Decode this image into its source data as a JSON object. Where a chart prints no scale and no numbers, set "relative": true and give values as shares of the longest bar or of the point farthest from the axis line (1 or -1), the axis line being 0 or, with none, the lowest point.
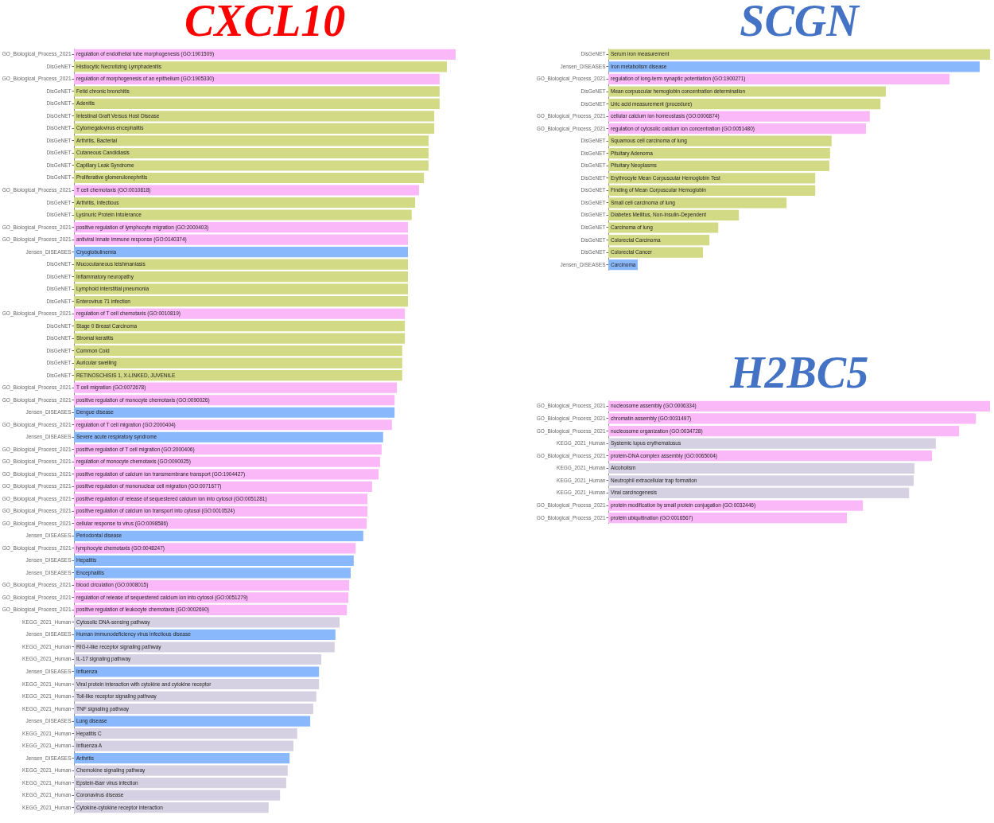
{
  "chart_data": [
    {
      "type": "bar",
      "orientation": "horizontal",
      "relative": true,
      "title": "CXCL10",
      "categories": [
        "GO_Biological_Process_2021",
        "DisGeNET",
        "GO_Biological_Process_2021",
        "DisGeNET",
        "DisGeNET",
        "DisGeNET",
        "DisGeNET",
        "DisGeNET",
        "DisGeNET",
        "DisGeNET",
        "DisGeNET",
        "GO_Biological_Process_2021",
        "DisGeNET",
        "DisGeNET",
        "GO_Biological_Process_2021",
        "GO_Biological_Process_2021",
        "Jensen_DISEASES",
        "DisGeNET",
        "DisGeNET",
        "DisGeNET",
        "DisGeNET",
        "GO_Biological_Process_2021",
        "DisGeNET",
        "DisGeNET",
        "DisGeNET",
        "DisGeNET",
        "DisGeNET",
        "GO_Biological_Process_2021",
        "GO_Biological_Process_2021",
        "Jensen_DISEASES",
        "GO_Biological_Process_2021",
        "Jensen_DISEASES",
        "GO_Biological_Process_2021",
        "GO_Biological_Process_2021",
        "GO_Biological_Process_2021",
        "GO_Biological_Process_2021",
        "GO_Biological_Process_2021",
        "GO_Biological_Process_2021",
        "GO_Biological_Process_2021",
        "Jensen_DISEASES",
        "GO_Biological_Process_2021",
        "Jensen_DISEASES",
        "Jensen_DISEASES",
        "GO_Biological_Process_2021",
        "GO_Biological_Process_2021",
        "GO_Biological_Process_2021",
        "KEGG_2021_Human",
        "Jensen_DISEASES",
        "KEGG_2021_Human",
        "KEGG_2021_Human",
        "Jensen_DISEASES",
        "KEGG_2021_Human",
        "KEGG_2021_Human",
        "KEGG_2021_Human",
        "Jensen_DISEASES",
        "KEGG_2021_Human",
        "KEGG_2021_Human",
        "Jensen_DISEASES",
        "KEGG_2021_Human",
        "KEGG_2021_Human",
        "KEGG_2021_Human",
        "KEGG_2021_Human"
      ],
      "values": [
        1,
        0.977,
        0.958,
        0.958,
        0.958,
        0.944,
        0.944,
        0.929,
        0.929,
        0.929,
        0.917,
        0.904,
        0.894,
        0.885,
        0.875,
        0.875,
        0.875,
        0.875,
        0.875,
        0.875,
        0.875,
        0.867,
        0.867,
        0.867,
        0.86,
        0.86,
        0.86,
        0.846,
        0.84,
        0.84,
        0.833,
        0.81,
        0.806,
        0.802,
        0.798,
        0.781,
        0.769,
        0.769,
        0.767,
        0.758,
        0.738,
        0.733,
        0.725,
        0.721,
        0.719,
        0.715,
        0.696,
        0.685,
        0.683,
        0.648,
        0.642,
        0.642,
        0.635,
        0.627,
        0.619,
        0.585,
        0.575,
        0.565,
        0.56,
        0.556,
        0.54,
        0.51
      ],
      "colors": [
        "#fbb8f8",
        "#d3da85",
        "#fbb8f8",
        "#d3da85",
        "#d3da85",
        "#d3da85",
        "#d3da85",
        "#d3da85",
        "#d3da85",
        "#d3da85",
        "#d3da85",
        "#fbb8f8",
        "#d3da85",
        "#d3da85",
        "#fbb8f8",
        "#fbb8f8",
        "#8ab8fd",
        "#d3da85",
        "#d3da85",
        "#d3da85",
        "#d3da85",
        "#fbb8f8",
        "#d3da85",
        "#d3da85",
        "#d3da85",
        "#d3da85",
        "#d3da85",
        "#fbb8f8",
        "#fbb8f8",
        "#8ab8fd",
        "#fbb8f8",
        "#8ab8fd",
        "#fbb8f8",
        "#fbb8f8",
        "#fbb8f8",
        "#fbb8f8",
        "#fbb8f8",
        "#fbb8f8",
        "#fbb8f8",
        "#8ab8fd",
        "#fbb8f8",
        "#8ab8fd",
        "#8ab8fd",
        "#fbb8f8",
        "#fbb8f8",
        "#fbb8f8",
        "#d6d1e2",
        "#8ab8fd",
        "#d6d1e2",
        "#d6d1e2",
        "#8ab8fd",
        "#d6d1e2",
        "#d6d1e2",
        "#d6d1e2",
        "#8ab8fd",
        "#d6d1e2",
        "#d6d1e2",
        "#8ab8fd",
        "#d6d1e2",
        "#d6d1e2",
        "#d6d1e2",
        "#d6d1e2"
      ],
      "annotations": [
        "regulation of endothelial tube morphogenesis (GO:1901509)",
        "Histiocytic Necrotizing Lymphadenitis",
        "regulation of morphogenesis of an epithelium (GO:1905330)",
        "Fetid chronic bronchitis",
        "Adenitis",
        "Intestinal Graft Versus Host Disease",
        "Cytomegalovirus encephalitis",
        "Arthritis, Bacterial",
        "Cutaneous Candidiasis",
        "Capillary Leak Syndrome",
        "Proliferative glomerulonephritis",
        "T cell chemotaxis (GO:0010818)",
        "Arthritis, Infectious",
        "Lysinuric Protein Intolerance",
        "positive regulation of lymphocyte migration (GO:2000403)",
        "antiviral innate immune response (GO:0140374)",
        "Cryoglobulinemia",
        "Mucocutaneous leishmaniasis",
        "Inflammatory neuropathy",
        "Lymphoid interstitial pneumonia",
        "Enterovirus 71 infection",
        "regulation of T cell chemotaxis (GO:0010819)",
        "Stage 0 Breast Carcinoma",
        "Stromal keratitis",
        "Common Cold",
        "Auricular swelling",
        "RETINOSCHISIS 1, X-LINKED, JUVENILE",
        "T cell migration (GO:0072678)",
        "positive regulation of monocyte chemotaxis (GO:0090026)",
        "Dengue disease",
        "regulation of T cell migration (GO:2000404)",
        "Severe acute respiratory syndrome",
        "positive regulation of T cell migration (GO:2000406)",
        "regulation of monocyte chemotaxis (GO:0090025)",
        "positive regulation of calcium ion transmembrane transport (GO:1904427)",
        "positive regulation of mononuclear cell migration (GO:0071677)",
        "positive regulation of release of sequestered calcium ion into cytosol (GO:0051281)",
        "positive regulation of calcium ion transport into cytosol (GO:0010524)",
        "cellular response to virus (GO:0098586)",
        "Periodontal disease",
        "lymphocyte chemotaxis (GO:0048247)",
        "Hepatitis",
        "Encephalitis",
        "blood circulation (GO:0008015)",
        "regulation of release of sequestered calcium ion into cytosol (GO:0051279)",
        "positive regulation of leukocyte chemotaxis (GO:0002690)",
        "Cytosolic DNA-sensing pathway",
        "Human immunodeficiency virus infectious disease",
        "RIG-I-like receptor signaling pathway",
        "IL-17 signaling pathway",
        "Influenza",
        "Viral protein interaction with cytokine and cytokine receptor",
        "Toll-like receptor signaling pathway",
        "TNF signaling pathway",
        "Lung disease",
        "Hepatitis C",
        "Influenza A",
        "Arthritis",
        "Chemokine signaling pathway",
        "Epstein-Barr virus infection",
        "Coronavirus disease",
        "Cytokine-cytokine receptor interaction"
      ]
    },
    {
      "type": "bar",
      "orientation": "horizontal",
      "relative": true,
      "title": "SCGN",
      "categories": [
        "DisGeNET",
        "Jensen_DISEASES",
        "GO_Biological_Process_2021",
        "DisGeNET",
        "DisGeNET",
        "GO_Biological_Process_2021",
        "GO_Biological_Process_2021",
        "DisGeNET",
        "DisGeNET",
        "DisGeNET",
        "DisGeNET",
        "DisGeNET",
        "DisGeNET",
        "DisGeNET",
        "DisGeNET",
        "DisGeNET",
        "DisGeNET",
        "Jensen_DISEASES"
      ],
      "values": [
        1,
        0.973,
        0.894,
        0.727,
        0.713,
        0.685,
        0.675,
        0.585,
        0.581,
        0.579,
        0.542,
        0.542,
        0.467,
        0.342,
        0.288,
        0.265,
        0.248,
        0.077
      ],
      "colors": [
        "#d3da85",
        "#8ab8fd",
        "#fbb8f8",
        "#d3da85",
        "#d3da85",
        "#fbb8f8",
        "#fbb8f8",
        "#d3da85",
        "#d3da85",
        "#d3da85",
        "#d3da85",
        "#d3da85",
        "#d3da85",
        "#d3da85",
        "#d3da85",
        "#d3da85",
        "#d3da85",
        "#8ab8fd"
      ],
      "annotations": [
        "Serum iron measurement",
        "Iron metabolism disease",
        "regulation of long-term synaptic potentiation (GO:1900271)",
        "Mean corpuscular hemoglobin concentration determination",
        "Uric acid measurement (procedure)",
        "cellular calcium ion homeostasis (GO:0006874)",
        "regulation of cytosolic calcium ion concentration (GO:0051480)",
        "Squamous cell carcinoma of lung",
        "Pituitary Adenoma",
        "Pituitary Neoplasms",
        "Erythrocyte Mean Corpuscular Hemoglobin Test",
        "Finding of Mean Corpuscular Hemoglobin",
        "Small cell carcinoma of lung",
        "Diabetes Mellitus, Non-Insulin-Dependent",
        "Carcinoma of lung",
        "Colorectal Carcinoma",
        "Colorectal Cancer",
        "Carcinoma"
      ]
    },
    {
      "type": "bar",
      "orientation": "horizontal",
      "relative": true,
      "title": "H2BC5",
      "categories": [
        "GO_Biological_Process_2021",
        "GO_Biological_Process_2021",
        "GO_Biological_Process_2021",
        "KEGG_2021_Human",
        "GO_Biological_Process_2021",
        "KEGG_2021_Human",
        "KEGG_2021_Human",
        "KEGG_2021_Human",
        "GO_Biological_Process_2021",
        "GO_Biological_Process_2021"
      ],
      "values": [
        1,
        0.963,
        0.919,
        0.858,
        0.848,
        0.802,
        0.8,
        0.788,
        0.667,
        0.625
      ],
      "colors": [
        "#fbb8f8",
        "#fbb8f8",
        "#fbb8f8",
        "#d6d1e2",
        "#fbb8f8",
        "#d6d1e2",
        "#d6d1e2",
        "#d6d1e2",
        "#fbb8f8",
        "#fbb8f8"
      ],
      "annotations": [
        "nucleosome assembly (GO:0006334)",
        "chromatin assembly (GO:0031497)",
        "nucleosome organization (GO:0034728)",
        "Systemic lupus erythematosus",
        "protein-DNA complex assembly (GO:0065004)",
        "Alcoholism",
        "Neutrophil extracellular trap formation",
        "Viral carcinogenesis",
        "protein modification by small protein conjugation (GO:0032446)",
        "protein ubiquitination (GO:0016567)"
      ]
    }
  ]
}
